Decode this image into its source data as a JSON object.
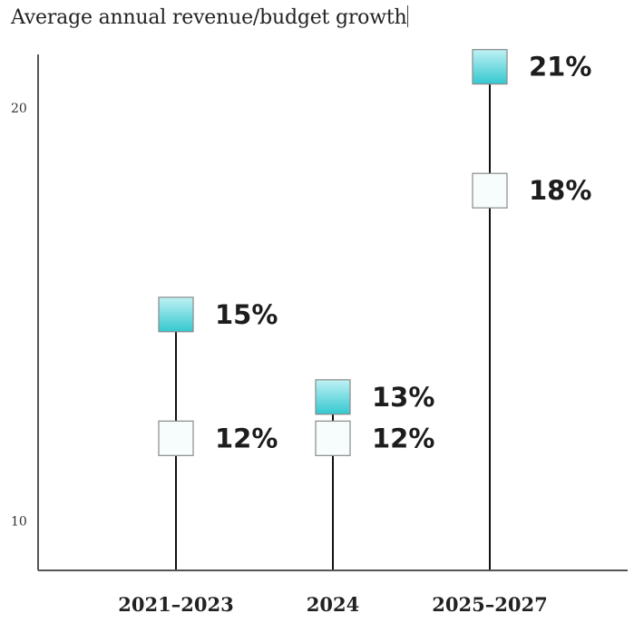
{
  "colors": {
    "series_a_fill_top": "#bff1f4",
    "series_a_fill_bottom": "#35c8d0",
    "series_b_fill": "#f7fcfd",
    "marker_border": "#8a8a8a",
    "axis": "#555555",
    "stem": "#111111"
  },
  "chart_data": {
    "type": "scatter",
    "title": "Average annual revenue/budget growth",
    "xlabel": "",
    "ylabel": "",
    "categories": [
      "2021–2023",
      "2024",
      "2025–2027"
    ],
    "yticks": [
      10,
      20
    ],
    "ylim": [
      8.8,
      21.3
    ],
    "grid": false,
    "legend": "none",
    "series": [
      {
        "values": [
          15,
          13,
          21
        ],
        "labels": [
          "15%",
          "13%",
          "21%"
        ],
        "style": "filled"
      },
      {
        "values": [
          12,
          12,
          18
        ],
        "labels": [
          "12%",
          "12%",
          "18%"
        ],
        "style": "outline"
      }
    ]
  }
}
